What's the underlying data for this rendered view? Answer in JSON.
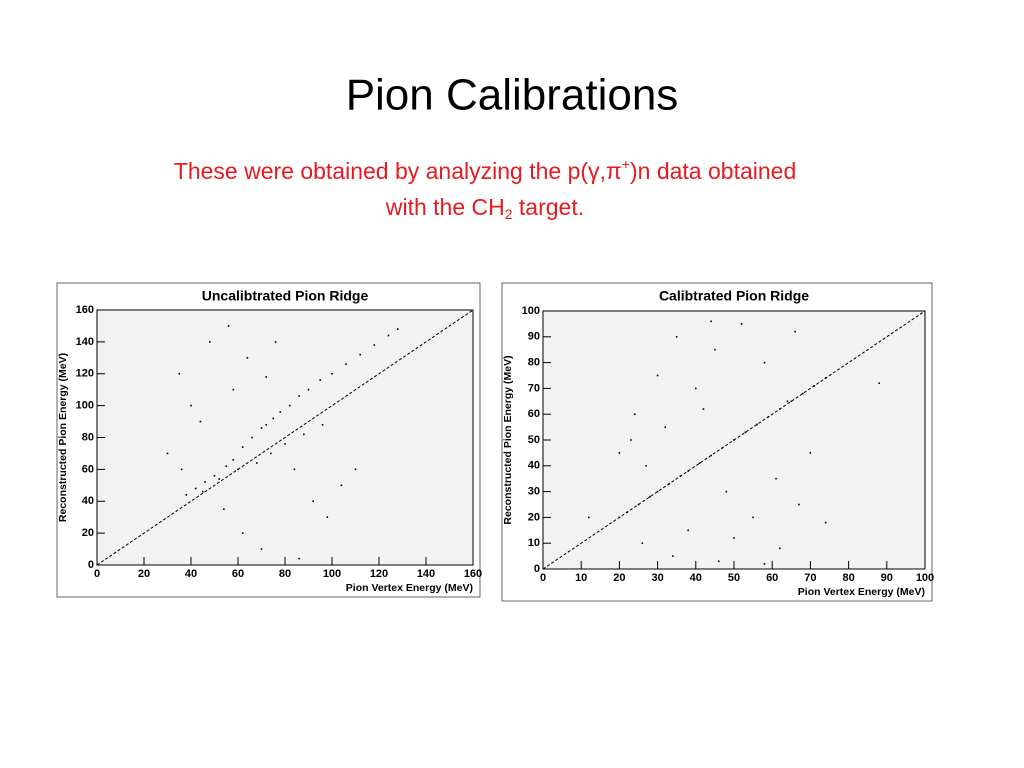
{
  "title": "Pion Calibrations",
  "subtitle": {
    "line1_start": "These were obtained by analyzing the p(γ,π",
    "line1_sup": "+",
    "line1_end": ")n data obtained",
    "line2_start": "with the CH",
    "line2_sub": "2",
    "line2_end": " target."
  },
  "chart_data": [
    {
      "type": "scatter",
      "title": "Uncalibtrated Pion Ridge",
      "x_label": "Pion Vertex Energy (MeV)",
      "y_label": "Reconstructed Pion Energy (MeV)",
      "xlim": [
        0,
        160
      ],
      "ylim": [
        0,
        160
      ],
      "xticks": [
        0,
        20,
        40,
        60,
        80,
        100,
        120,
        140,
        160
      ],
      "yticks": [
        0,
        20,
        40,
        60,
        80,
        100,
        120,
        140,
        160
      ],
      "color": "#000000",
      "x": [
        38,
        42,
        46,
        50,
        55,
        58,
        62,
        66,
        70,
        72,
        75,
        78,
        82,
        86,
        90,
        95,
        100,
        106,
        112,
        118,
        124,
        128,
        45,
        52,
        60,
        68,
        74,
        80,
        88,
        96,
        35,
        40,
        48,
        56,
        64,
        72,
        84,
        92,
        30,
        44,
        58,
        76,
        98,
        110,
        62,
        70,
        86,
        104,
        36,
        54
      ],
      "y": [
        44,
        48,
        52,
        56,
        62,
        66,
        74,
        80,
        86,
        88,
        92,
        96,
        100,
        106,
        110,
        116,
        120,
        126,
        132,
        138,
        144,
        148,
        46,
        54,
        60,
        64,
        70,
        76,
        82,
        88,
        120,
        100,
        140,
        150,
        130,
        118,
        60,
        40,
        70,
        90,
        110,
        140,
        30,
        60,
        20,
        10,
        4,
        50,
        60,
        35
      ],
      "diagonal": true
    },
    {
      "type": "scatter",
      "title": "Calibtrated Pion Ridge",
      "x_label": "Pion Vertex Energy (MeV)",
      "y_label": "Reconstructed Pion Energy (MeV)",
      "xlim": [
        0,
        100
      ],
      "ylim": [
        0,
        100
      ],
      "xticks": [
        0,
        10,
        20,
        30,
        40,
        50,
        60,
        70,
        80,
        90,
        100
      ],
      "yticks": [
        0,
        10,
        20,
        30,
        40,
        50,
        60,
        70,
        80,
        90,
        100
      ],
      "color": "#000000",
      "x": [
        20,
        22,
        25,
        28,
        30,
        33,
        36,
        38,
        41,
        44,
        47,
        50,
        53,
        56,
        59,
        62,
        65,
        68,
        71,
        74,
        24,
        30,
        35,
        40,
        45,
        52,
        58,
        64,
        70,
        27,
        32,
        42,
        48,
        55,
        61,
        67,
        20,
        26,
        38,
        50,
        62,
        74,
        34,
        46,
        58,
        23,
        44,
        66,
        88,
        12
      ],
      "y": [
        20,
        22,
        25,
        28,
        30,
        33,
        36,
        38,
        41,
        44,
        47,
        50,
        53,
        56,
        59,
        62,
        65,
        68,
        71,
        74,
        60,
        75,
        90,
        70,
        85,
        95,
        80,
        65,
        45,
        40,
        55,
        62,
        30,
        20,
        35,
        25,
        45,
        10,
        15,
        12,
        8,
        18,
        5,
        3,
        2,
        50,
        96,
        92,
        72,
        20
      ],
      "diagonal": true
    }
  ]
}
